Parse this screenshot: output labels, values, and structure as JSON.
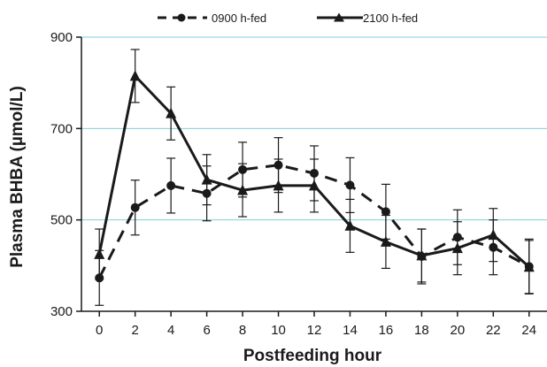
{
  "chart_data": {
    "type": "line",
    "title": "",
    "xlabel": "Postfeeding hour",
    "ylabel": "Plasma BHBA (µmol/L)",
    "x": [
      0,
      2,
      4,
      6,
      8,
      10,
      12,
      14,
      16,
      18,
      20,
      22,
      24
    ],
    "xlim": [
      -1,
      25
    ],
    "ylim": [
      300,
      900
    ],
    "yticks": [
      300,
      500,
      700,
      900
    ],
    "grid": "horizontal",
    "legend_position": "top",
    "series": [
      {
        "name": "0900 h-fed",
        "marker": "circle",
        "line_style": "dashed",
        "color": "#1a1a1a",
        "values": [
          373,
          527,
          575,
          558,
          610,
          620,
          602,
          576,
          518,
          420,
          462,
          440,
          398
        ],
        "error": [
          60,
          60,
          60,
          60,
          60,
          60,
          60,
          60,
          60,
          60,
          60,
          60,
          60
        ]
      },
      {
        "name": "2100 h-fed",
        "marker": "triangle",
        "line_style": "solid",
        "color": "#1a1a1a",
        "values": [
          425,
          815,
          733,
          588,
          565,
          575,
          575,
          487,
          452,
          422,
          438,
          467,
          397
        ],
        "error": [
          55,
          58,
          58,
          55,
          58,
          58,
          58,
          58,
          58,
          58,
          58,
          58,
          58
        ]
      }
    ],
    "gridline_color": "#7ecfdc"
  }
}
